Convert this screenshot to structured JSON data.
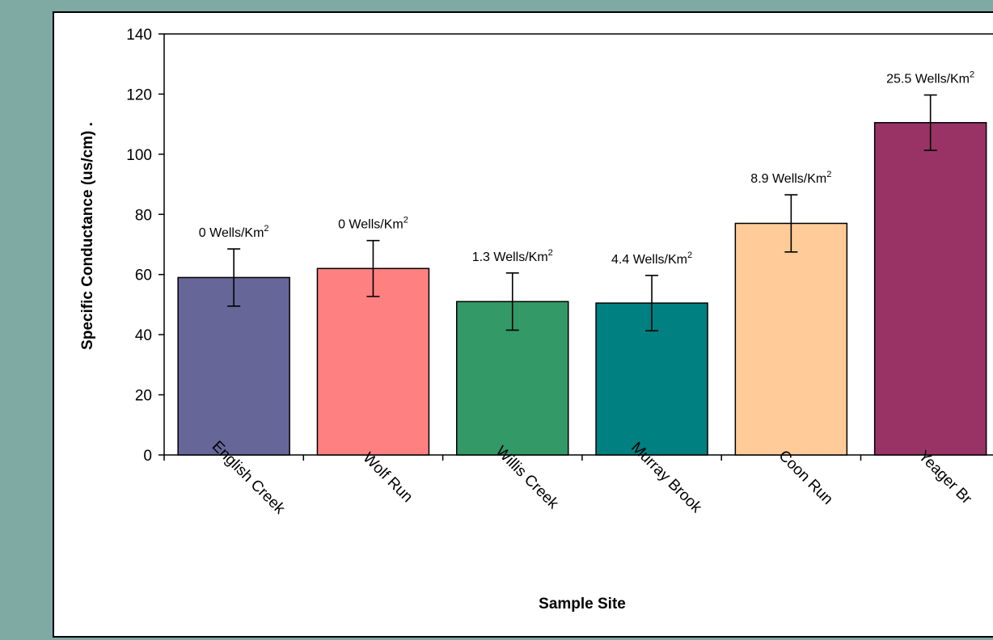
{
  "chart_data": {
    "type": "bar",
    "xlabel": "Sample Site",
    "ylabel": "Specific Conductance (us/cm) .",
    "ylim": [
      0,
      140
    ],
    "yticks": [
      "0",
      "20",
      "40",
      "60",
      "80",
      "100",
      "120",
      "140"
    ],
    "categories": [
      "English Creek",
      "Wolf Run",
      "Willis Creek",
      "Murray Brook",
      "Coon Run",
      "Yeager Br"
    ],
    "values": [
      59,
      62,
      51,
      50.5,
      77,
      110.5
    ],
    "error": [
      9.5,
      9.3,
      9.5,
      9.2,
      9.5,
      9.2
    ],
    "annotations": [
      {
        "text": "0 Wells/Km",
        "sup": "2"
      },
      {
        "text": "0 Wells/Km",
        "sup": "2"
      },
      {
        "text": "1.3 Wells/Km",
        "sup": "2"
      },
      {
        "text": "4.4 Wells/Km",
        "sup": "2"
      },
      {
        "text": "8.9 Wells/Km",
        "sup": "2"
      },
      {
        "text": "25.5 Wells/Km",
        "sup": "2"
      }
    ],
    "colors": [
      "#666699",
      "#ff8080",
      "#339966",
      "#008080",
      "#ffcc99",
      "#993366"
    ],
    "grid": false,
    "legend": "none"
  }
}
